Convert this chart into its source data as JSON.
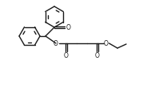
{
  "bg_color": "#ffffff",
  "line_color": "#1a1a1a",
  "lw": 1.0,
  "figsize": [
    1.79,
    1.11
  ],
  "dpi": 100,
  "xlim": [
    0,
    179
  ],
  "ylim": [
    0,
    111
  ]
}
